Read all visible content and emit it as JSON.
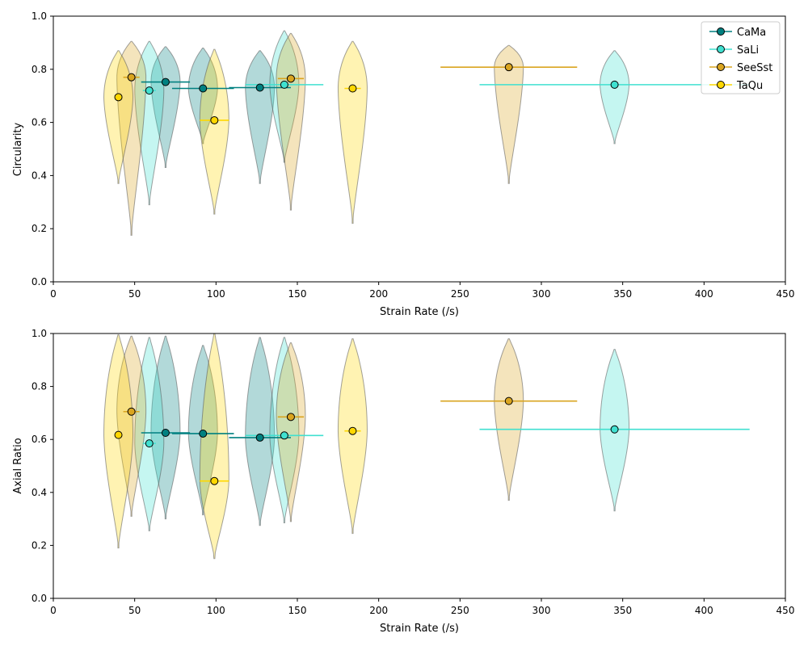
{
  "figure": {
    "legend_placement": "top-right of first plot",
    "legend_entries": [
      {
        "name": "CaMa",
        "color": "#008080"
      },
      {
        "name": "SaLi",
        "color": "#40E0D0"
      },
      {
        "name": "SeeSst",
        "color": "#DAA520"
      },
      {
        "name": "TaQu",
        "color": "#FFD700"
      }
    ]
  },
  "chart_data": [
    {
      "type": "violin",
      "title": "",
      "xlabel": "Strain Rate (/s)",
      "ylabel": "Circularity",
      "xlim": [
        0,
        450
      ],
      "ylim": [
        0,
        1
      ],
      "xticks": [
        0,
        50,
        100,
        150,
        200,
        250,
        300,
        350,
        400,
        450
      ],
      "yticks": [
        "0.0",
        "0.2",
        "0.4",
        "0.6",
        "0.8",
        "1.0"
      ],
      "grid": false,
      "series": [
        {
          "name": "CaMa",
          "color": "#008080",
          "points": [
            {
              "x": 69,
              "y": 0.752,
              "xerr": 15,
              "vmin": 0.43,
              "vmax": 0.885
            },
            {
              "x": 92,
              "y": 0.728,
              "xerr": 19,
              "vmin": 0.52,
              "vmax": 0.88
            },
            {
              "x": 127,
              "y": 0.731,
              "xerr": 19,
              "vmin": 0.37,
              "vmax": 0.87
            }
          ]
        },
        {
          "name": "SaLi",
          "color": "#40E0D0",
          "points": [
            {
              "x": 59,
              "y": 0.72,
              "xerr": 4,
              "vmin": 0.29,
              "vmax": 0.905
            },
            {
              "x": 142,
              "y": 0.742,
              "xerr": 24,
              "vmin": 0.45,
              "vmax": 0.945
            },
            {
              "x": 345,
              "y": 0.742,
              "xerr": 83,
              "vmin": 0.52,
              "vmax": 0.87
            }
          ]
        },
        {
          "name": "SeeSst",
          "color": "#DAA520",
          "points": [
            {
              "x": 48,
              "y": 0.77,
              "xerr": 5,
              "vmin": 0.175,
              "vmax": 0.905
            },
            {
              "x": 146,
              "y": 0.765,
              "xerr": 8,
              "vmin": 0.27,
              "vmax": 0.935
            },
            {
              "x": 280,
              "y": 0.808,
              "xerr": 42,
              "vmin": 0.37,
              "vmax": 0.89
            }
          ]
        },
        {
          "name": "TaQu",
          "color": "#FFD700",
          "points": [
            {
              "x": 40,
              "y": 0.695,
              "xerr": 2,
              "vmin": 0.37,
              "vmax": 0.87
            },
            {
              "x": 99,
              "y": 0.608,
              "xerr": 9,
              "vmin": 0.255,
              "vmax": 0.875
            },
            {
              "x": 184,
              "y": 0.728,
              "xerr": 5,
              "vmin": 0.22,
              "vmax": 0.905
            }
          ]
        }
      ]
    },
    {
      "type": "violin",
      "title": "",
      "xlabel": "Strain Rate (/s)",
      "ylabel": "Axial Ratio",
      "xlim": [
        0,
        450
      ],
      "ylim": [
        0,
        1
      ],
      "xticks": [
        0,
        50,
        100,
        150,
        200,
        250,
        300,
        350,
        400,
        450
      ],
      "yticks": [
        "0.0",
        "0.2",
        "0.4",
        "0.6",
        "0.8",
        "1.0"
      ],
      "grid": false,
      "series": [
        {
          "name": "CaMa",
          "color": "#008080",
          "points": [
            {
              "x": 69,
              "y": 0.625,
              "xerr": 15,
              "vmin": 0.3,
              "vmax": 0.99
            },
            {
              "x": 92,
              "y": 0.622,
              "xerr": 19,
              "vmin": 0.315,
              "vmax": 0.955
            },
            {
              "x": 127,
              "y": 0.607,
              "xerr": 19,
              "vmin": 0.275,
              "vmax": 0.985
            }
          ]
        },
        {
          "name": "SaLi",
          "color": "#40E0D0",
          "points": [
            {
              "x": 59,
              "y": 0.585,
              "xerr": 4,
              "vmin": 0.255,
              "vmax": 0.985
            },
            {
              "x": 142,
              "y": 0.615,
              "xerr": 24,
              "vmin": 0.285,
              "vmax": 0.985
            },
            {
              "x": 345,
              "y": 0.638,
              "xerr": 83,
              "vmin": 0.33,
              "vmax": 0.94
            }
          ]
        },
        {
          "name": "SeeSst",
          "color": "#DAA520",
          "points": [
            {
              "x": 48,
              "y": 0.705,
              "xerr": 5,
              "vmin": 0.31,
              "vmax": 0.99
            },
            {
              "x": 146,
              "y": 0.685,
              "xerr": 8,
              "vmin": 0.29,
              "vmax": 0.965
            },
            {
              "x": 280,
              "y": 0.745,
              "xerr": 42,
              "vmin": 0.37,
              "vmax": 0.98
            }
          ]
        },
        {
          "name": "TaQu",
          "color": "#FFD700",
          "points": [
            {
              "x": 40,
              "y": 0.617,
              "xerr": 2,
              "vmin": 0.19,
              "vmax": 0.995
            },
            {
              "x": 99,
              "y": 0.443,
              "xerr": 9,
              "vmin": 0.15,
              "vmax": 1.0
            },
            {
              "x": 184,
              "y": 0.632,
              "xerr": 5,
              "vmin": 0.245,
              "vmax": 0.98
            }
          ]
        }
      ]
    }
  ]
}
